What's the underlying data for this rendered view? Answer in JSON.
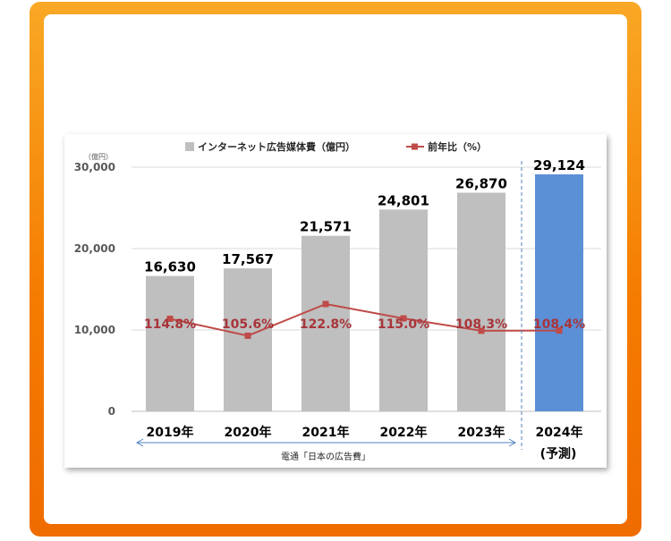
{
  "chart_data": {
    "type": "bar",
    "categories": [
      "2019年",
      "2020年",
      "2021年",
      "2022年",
      "2023年",
      "2024年"
    ],
    "forecast_note": "(予測)",
    "series": [
      {
        "name": "インターネット広告媒体費（億円）",
        "type": "bar",
        "values": [
          16630,
          17567,
          21571,
          24801,
          26870,
          29124
        ],
        "labels": [
          "16,630",
          "17,567",
          "21,571",
          "24,801",
          "26,870",
          "29,124"
        ],
        "color": "#bfbfbf",
        "highlight_color": "#5b8fd6"
      },
      {
        "name": "前年比（%）",
        "type": "line",
        "values": [
          114.8,
          105.6,
          122.8,
          115.0,
          108.3,
          108.4
        ],
        "labels": [
          "114.8%",
          "105.6%",
          "122.8%",
          "115.0%",
          "108.3%",
          "108.4%"
        ],
        "color": "#be4b48"
      }
    ],
    "yunit": "（億円）",
    "yticks": [
      "0",
      "10,000",
      "20,000",
      "30,000"
    ],
    "ytick_values": [
      0,
      10000,
      20000,
      30000
    ],
    "ylim": [
      0,
      30000
    ],
    "source": "電通「日本の広告費」"
  }
}
